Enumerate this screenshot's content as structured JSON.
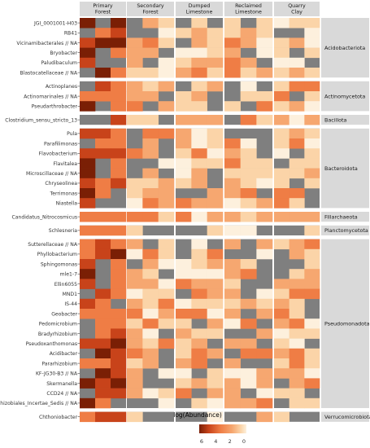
{
  "chart_data": {
    "type": "heatmap",
    "title": "",
    "legend": {
      "title": "log(Abundance)",
      "ticks": [
        6,
        4,
        2,
        0
      ],
      "placement": "bottom",
      "colors": [
        "#7a1f05",
        "#c8431a",
        "#ef7d45",
        "#f6a770",
        "#fbd4a8",
        "#fdf0dd"
      ]
    },
    "missing_color": "#7f7f7f",
    "columns": [
      {
        "name": "Primary\nForest",
        "samples": 3
      },
      {
        "name": "Secondary\nForest",
        "samples": 3
      },
      {
        "name": "Dumped\nLimestone",
        "samples": 3
      },
      {
        "name": "Reclaimed\nLimestone",
        "samples": 3
      },
      {
        "name": "Quarry\nClay",
        "samples": 3
      }
    ],
    "row_groups": [
      {
        "phylum": "Acidobacteriota",
        "rows": [
          "JGI_0001001-H03",
          "RB41",
          "Vicinamibacterales // NA",
          "Bryobacter",
          "Paludibaculum",
          "Blastocatellaceae // NA"
        ]
      },
      {
        "phylum": "Actinomycetota",
        "rows": [
          "Actinoplanes",
          "Actinomarinales // NA",
          "Pseudarthrobacter"
        ]
      },
      {
        "phylum": "Bacillota",
        "rows": [
          "Clostridium_sensu_stricto_13"
        ]
      },
      {
        "phylum": "Bacteroidota",
        "rows": [
          "Pula",
          "Parafilimonas",
          "Flavobacterium",
          "Flavitalea",
          "Microscillaceae // NA",
          "Chryseolinea",
          "Terrimonas",
          "Niastella"
        ]
      },
      {
        "phylum": "Fillarchaeota",
        "rows": [
          "Candidatus_Nitrocosmicus"
        ]
      },
      {
        "phylum": "Planctomycetota",
        "rows": [
          "Schlesneria"
        ]
      },
      {
        "phylum": "Pseudomonadota",
        "rows": [
          "Sutterellaceae // NA",
          "Phyllobacterium",
          "Sphingomonas",
          "mle1-7",
          "Ellin6055",
          "MND1",
          "IS-44",
          "Geobacter",
          "Pedomicrobium",
          "Bradyrhizobium",
          "Pseudoxanthomonas",
          "Acidibacter",
          "Pararhizobium",
          "KF-JG30-B3 // NA",
          "Skermanella",
          "CCD24 // NA",
          "Rhizobiales_Incertae_Sedis // NA"
        ]
      },
      {
        "phylum": "Verrucomicrobiota",
        "rows": [
          "Chthoniobacter"
        ]
      }
    ]
  }
}
